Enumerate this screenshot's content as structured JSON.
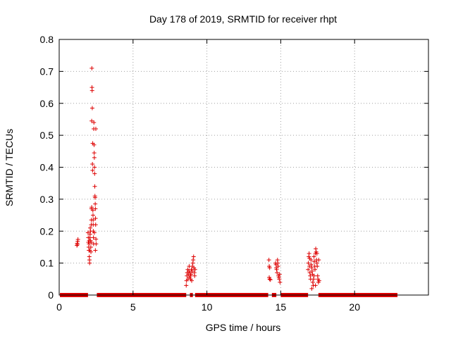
{
  "chart_data": {
    "type": "scatter",
    "title": "Day 178 of 2019, SRMTID for receiver rhpt",
    "xlabel": "GPS time / hours",
    "ylabel": "SRMTID / TECUs",
    "xlim": [
      0,
      25
    ],
    "ylim": [
      0,
      0.8
    ],
    "xticks": [
      0,
      5,
      10,
      15,
      20
    ],
    "yticks": [
      0,
      0.1,
      0.2,
      0.3,
      0.4,
      0.5,
      0.6,
      0.7,
      0.8
    ],
    "ytick_labels": [
      "0",
      "0.1",
      "0.2",
      "0.3",
      "0.4",
      "0.5",
      "0.6",
      "0.7",
      "0.8"
    ],
    "xtick_labels": [
      "0",
      "5",
      "10",
      "15",
      "20"
    ],
    "grid": true,
    "marker": "+",
    "color": "#dd0000",
    "baseline_segments": [
      [
        0.05,
        1.95
      ],
      [
        2.55,
        8.6
      ],
      [
        8.85,
        9.05
      ],
      [
        9.2,
        14.15
      ],
      [
        14.4,
        14.7
      ],
      [
        15.0,
        16.85
      ],
      [
        17.55,
        22.9
      ]
    ],
    "series": [
      {
        "name": "SRMTID",
        "points": [
          [
            1.2,
            0.155
          ],
          [
            1.22,
            0.162
          ],
          [
            1.25,
            0.168
          ],
          [
            1.27,
            0.174
          ],
          [
            1.23,
            0.158
          ],
          [
            1.95,
            0.195
          ],
          [
            1.97,
            0.18
          ],
          [
            1.98,
            0.165
          ],
          [
            2.0,
            0.15
          ],
          [
            2.01,
            0.14
          ],
          [
            2.02,
            0.16
          ],
          [
            2.03,
            0.17
          ],
          [
            2.04,
            0.12
          ],
          [
            2.05,
            0.11
          ],
          [
            2.06,
            0.1
          ],
          [
            2.07,
            0.14
          ],
          [
            2.08,
            0.18
          ],
          [
            2.09,
            0.19
          ],
          [
            2.1,
            0.21
          ],
          [
            2.12,
            0.2
          ],
          [
            2.13,
            0.17
          ],
          [
            2.14,
            0.15
          ],
          [
            2.15,
            0.135
          ],
          [
            2.16,
            0.165
          ],
          [
            2.17,
            0.22
          ],
          [
            2.18,
            0.235
          ],
          [
            2.19,
            0.27
          ],
          [
            2.2,
            0.275
          ],
          [
            2.2,
            0.545
          ],
          [
            2.21,
            0.71
          ],
          [
            2.22,
            0.65
          ],
          [
            2.23,
            0.64
          ],
          [
            2.24,
            0.585
          ],
          [
            2.25,
            0.41
          ],
          [
            2.26,
            0.39
          ],
          [
            2.27,
            0.475
          ],
          [
            2.28,
            0.265
          ],
          [
            2.29,
            0.25
          ],
          [
            2.3,
            0.22
          ],
          [
            2.31,
            0.2
          ],
          [
            2.32,
            0.18
          ],
          [
            2.33,
            0.16
          ],
          [
            2.34,
            0.52
          ],
          [
            2.35,
            0.54
          ],
          [
            2.36,
            0.47
          ],
          [
            2.37,
            0.445
          ],
          [
            2.38,
            0.43
          ],
          [
            2.39,
            0.4
          ],
          [
            2.4,
            0.38
          ],
          [
            2.41,
            0.34
          ],
          [
            2.42,
            0.31
          ],
          [
            2.43,
            0.305
          ],
          [
            2.44,
            0.285
          ],
          [
            2.45,
            0.27
          ],
          [
            2.46,
            0.24
          ],
          [
            2.47,
            0.22
          ],
          [
            2.48,
            0.52
          ],
          [
            2.49,
            0.175
          ],
          [
            2.5,
            0.16
          ],
          [
            2.45,
            0.14
          ],
          [
            2.38,
            0.195
          ],
          [
            2.3,
            0.235
          ],
          [
            8.6,
            0.03
          ],
          [
            8.62,
            0.045
          ],
          [
            8.65,
            0.06
          ],
          [
            8.67,
            0.07
          ],
          [
            8.7,
            0.08
          ],
          [
            8.72,
            0.05
          ],
          [
            8.75,
            0.065
          ],
          [
            8.78,
            0.075
          ],
          [
            8.8,
            0.09
          ],
          [
            8.82,
            0.055
          ],
          [
            8.85,
            0.07
          ],
          [
            8.88,
            0.06
          ],
          [
            8.9,
            0.05
          ],
          [
            8.92,
            0.065
          ],
          [
            8.95,
            0.08
          ],
          [
            8.97,
            0.045
          ],
          [
            9.0,
            0.075
          ],
          [
            9.02,
            0.09
          ],
          [
            9.05,
            0.1
          ],
          [
            9.07,
            0.11
          ],
          [
            9.1,
            0.12
          ],
          [
            9.12,
            0.085
          ],
          [
            9.15,
            0.07
          ],
          [
            9.17,
            0.06
          ],
          [
            9.2,
            0.08
          ],
          [
            14.2,
            0.11
          ],
          [
            14.22,
            0.09
          ],
          [
            14.25,
            0.085
          ],
          [
            14.22,
            0.055
          ],
          [
            14.25,
            0.05
          ],
          [
            14.3,
            0.048
          ],
          [
            14.65,
            0.1
          ],
          [
            14.68,
            0.095
          ],
          [
            14.7,
            0.085
          ],
          [
            14.72,
            0.08
          ],
          [
            14.75,
            0.07
          ],
          [
            14.78,
            0.11
          ],
          [
            14.8,
            0.1
          ],
          [
            14.82,
            0.09
          ],
          [
            14.85,
            0.06
          ],
          [
            14.88,
            0.055
          ],
          [
            14.9,
            0.05
          ],
          [
            14.92,
            0.065
          ],
          [
            14.95,
            0.04
          ],
          [
            16.85,
            0.08
          ],
          [
            16.87,
            0.1
          ],
          [
            16.9,
            0.12
          ],
          [
            16.92,
            0.13
          ],
          [
            16.95,
            0.09
          ],
          [
            16.97,
            0.07
          ],
          [
            17.0,
            0.06
          ],
          [
            17.02,
            0.05
          ],
          [
            17.05,
            0.11
          ],
          [
            17.07,
            0.095
          ],
          [
            17.1,
            0.085
          ],
          [
            17.12,
            0.075
          ],
          [
            17.15,
            0.065
          ],
          [
            17.17,
            0.04
          ],
          [
            17.2,
            0.03
          ],
          [
            17.22,
            0.05
          ],
          [
            17.25,
            0.12
          ],
          [
            17.27,
            0.105
          ],
          [
            17.3,
            0.09
          ],
          [
            17.32,
            0.08
          ],
          [
            17.35,
            0.13
          ],
          [
            17.37,
            0.145
          ],
          [
            17.4,
            0.135
          ],
          [
            17.42,
            0.11
          ],
          [
            17.45,
            0.1
          ],
          [
            17.47,
            0.09
          ],
          [
            17.5,
            0.06
          ],
          [
            17.52,
            0.05
          ],
          [
            17.55,
            0.04
          ],
          [
            17.57,
            0.11
          ],
          [
            17.45,
            0.13
          ],
          [
            17.35,
            0.03
          ],
          [
            17.1,
            0.02
          ],
          [
            17.25,
            0.06
          ],
          [
            16.95,
            0.115
          ],
          [
            17.6,
            0.045
          ]
        ]
      }
    ]
  }
}
